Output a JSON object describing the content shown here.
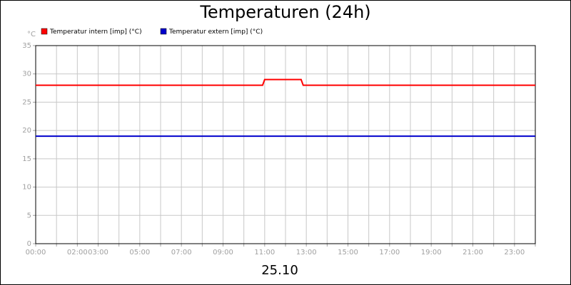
{
  "chart_data": {
    "type": "line",
    "title": "Temperaturen (24h)",
    "y_label": "°C",
    "x_label": "25.10",
    "series": [
      {
        "name": "Temperatur intern [imp] (°C)",
        "color": "#ff0000",
        "x": [
          0,
          10.9,
          11.0,
          12.75,
          12.85,
          24
        ],
        "values": [
          28,
          28,
          29,
          29,
          28,
          28
        ]
      },
      {
        "name": "Temperatur extern [imp] (°C)",
        "color": "#0000cc",
        "x": [
          0,
          24
        ],
        "values": [
          19,
          19
        ]
      }
    ],
    "xlim": [
      0,
      24
    ],
    "xticks": [
      {
        "value": 0,
        "label": "00:00"
      },
      {
        "value": 2,
        "label": "02:00"
      },
      {
        "value": 3,
        "label": "03:00"
      },
      {
        "value": 5,
        "label": "05:00"
      },
      {
        "value": 7,
        "label": "07:00"
      },
      {
        "value": 9,
        "label": "09:00"
      },
      {
        "value": 11,
        "label": "11:00"
      },
      {
        "value": 13,
        "label": "13:00"
      },
      {
        "value": 15,
        "label": "15:00"
      },
      {
        "value": 17,
        "label": "17:00"
      },
      {
        "value": 19,
        "label": "19:00"
      },
      {
        "value": 21,
        "label": "21:00"
      },
      {
        "value": 23,
        "label": "23:00"
      }
    ],
    "xminor_ticks": [
      1,
      4,
      6,
      8,
      10,
      12,
      14,
      16,
      18,
      20,
      22,
      24
    ],
    "ylim": [
      0,
      35
    ],
    "yticks": [
      0,
      5,
      10,
      15,
      20,
      25,
      30,
      35
    ],
    "grid": true
  }
}
